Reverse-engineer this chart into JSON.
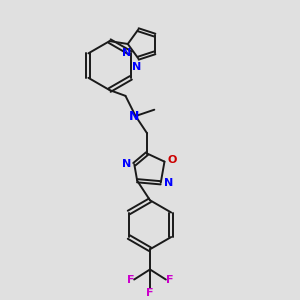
{
  "background_color": "#e0e0e0",
  "bond_color": "#1a1a1a",
  "N_color": "#0000ff",
  "O_color": "#cc0000",
  "F_color": "#cc00cc",
  "line_width": 1.4,
  "dbo": 0.07,
  "figsize": [
    3.0,
    3.0
  ],
  "dpi": 100,
  "xlim": [
    -3.5,
    3.5
  ],
  "ylim": [
    -5.5,
    4.5
  ]
}
